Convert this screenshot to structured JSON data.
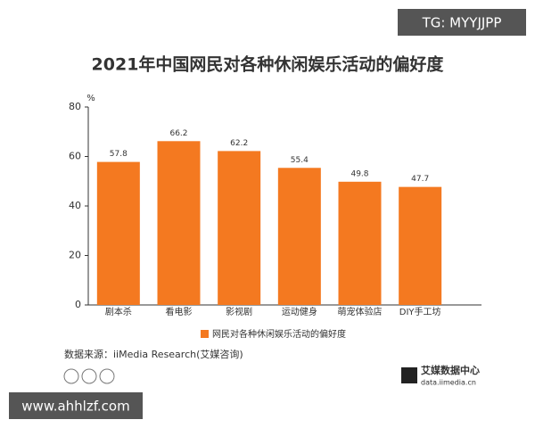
{
  "chart_data": {
    "type": "bar",
    "title": "2021年中国网民对各种休闲娱乐活动的偏好度",
    "y_unit": "%",
    "categories": [
      "剧本杀",
      "看电影",
      "影视剧",
      "运动健身",
      "萌宠体验店",
      "DIY手工坊"
    ],
    "series": [
      {
        "name": "网民对各种休闲娱乐活动的偏好度",
        "color": "#f47920",
        "values": [
          57.8,
          66.2,
          62.2,
          55.4,
          49.8,
          47.7
        ]
      }
    ],
    "ylim": [
      0,
      80
    ],
    "yticks": [
      0,
      20,
      40,
      60,
      80
    ],
    "grid": false,
    "source": "数据来源：iiMedia Research(艾媒咨询)"
  },
  "logo": {
    "name": "艾媒数据中心",
    "url": "data.iimedia.cn"
  },
  "watermarks": [
    "TG: MYYJJPP",
    "www.ahhlzf.com"
  ]
}
